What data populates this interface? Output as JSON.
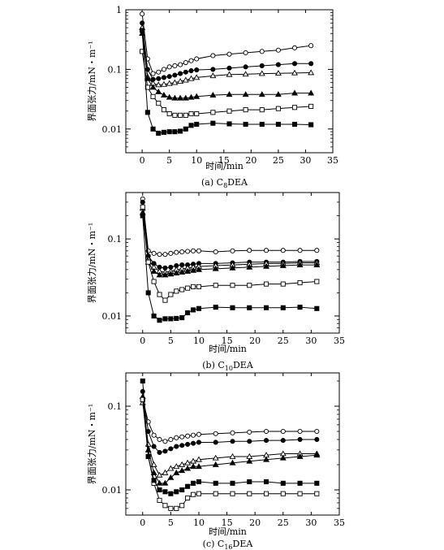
{
  "chart_data": [
    {
      "type": "line",
      "caption": {
        "prefix": "(a) C",
        "sub": "8",
        "suffix": "DEA"
      },
      "xlabel": "时间/min",
      "ylabel": "界面张力/mN・m⁻¹",
      "xlim": [
        -3,
        35
      ],
      "ylim": [
        0.004,
        1
      ],
      "yscale": "log",
      "xticks": [
        "0",
        "5",
        "10",
        "15",
        "20",
        "25",
        "30",
        "35"
      ],
      "yticks": [
        "1",
        "0.1",
        "0.01"
      ],
      "series": [
        {
          "marker": "open-circle",
          "x": [
            0,
            1,
            2,
            3,
            4,
            5,
            6,
            7,
            8,
            9,
            10,
            13,
            16,
            19,
            22,
            25,
            28,
            31
          ],
          "y": [
            0.85,
            0.15,
            0.085,
            0.09,
            0.1,
            0.11,
            0.115,
            0.12,
            0.13,
            0.14,
            0.15,
            0.17,
            0.18,
            0.19,
            0.2,
            0.21,
            0.23,
            0.25
          ]
        },
        {
          "marker": "filled-circle",
          "x": [
            0,
            1,
            2,
            3,
            4,
            5,
            6,
            7,
            8,
            9,
            10,
            13,
            16,
            19,
            22,
            25,
            28,
            31
          ],
          "y": [
            0.6,
            0.1,
            0.068,
            0.07,
            0.073,
            0.076,
            0.08,
            0.085,
            0.09,
            0.095,
            0.098,
            0.1,
            0.105,
            0.11,
            0.115,
            0.12,
            0.125,
            0.125
          ]
        },
        {
          "marker": "open-triangle",
          "x": [
            0,
            1,
            2,
            3,
            4,
            5,
            6,
            7,
            8,
            9,
            10,
            13,
            16,
            19,
            22,
            25,
            28,
            31
          ],
          "y": [
            0.5,
            0.075,
            0.058,
            0.055,
            0.056,
            0.058,
            0.06,
            0.063,
            0.066,
            0.07,
            0.073,
            0.078,
            0.082,
            0.083,
            0.085,
            0.086,
            0.087,
            0.088
          ]
        },
        {
          "marker": "filled-triangle",
          "x": [
            0,
            1,
            2,
            3,
            4,
            5,
            6,
            7,
            8,
            9,
            10,
            13,
            16,
            19,
            22,
            25,
            28,
            31
          ],
          "y": [
            0.4,
            0.07,
            0.05,
            0.042,
            0.037,
            0.034,
            0.033,
            0.033,
            0.033,
            0.034,
            0.035,
            0.037,
            0.038,
            0.038,
            0.038,
            0.038,
            0.04,
            0.04
          ]
        },
        {
          "marker": "open-square",
          "x": [
            0,
            1,
            2,
            3,
            4,
            5,
            6,
            7,
            8,
            9,
            10,
            13,
            16,
            19,
            22,
            25,
            28,
            31
          ],
          "y": [
            0.2,
            0.05,
            0.035,
            0.027,
            0.021,
            0.018,
            0.017,
            0.017,
            0.017,
            0.018,
            0.018,
            0.019,
            0.02,
            0.021,
            0.021,
            0.022,
            0.023,
            0.024
          ]
        },
        {
          "marker": "filled-square",
          "x": [
            0,
            1,
            2,
            3,
            4,
            5,
            6,
            7,
            8,
            9,
            10,
            13,
            16,
            19,
            22,
            25,
            28,
            31
          ],
          "y": [
            0.45,
            0.019,
            0.01,
            0.0085,
            0.0088,
            0.009,
            0.009,
            0.0092,
            0.01,
            0.0115,
            0.012,
            0.0125,
            0.0122,
            0.012,
            0.012,
            0.012,
            0.012,
            0.0118
          ]
        }
      ]
    },
    {
      "type": "line",
      "caption": {
        "prefix": "(b) C",
        "sub": "10",
        "suffix": "DEA"
      },
      "xlabel": "时间/min",
      "ylabel": "界面张力/mN・m⁻¹",
      "xlim": [
        -3,
        35
      ],
      "ylim": [
        0.006,
        0.4
      ],
      "yscale": "log",
      "xticks": [
        "0",
        "5",
        "10",
        "15",
        "20",
        "25",
        "30",
        "35"
      ],
      "yticks": [
        "0.1",
        "0.01"
      ],
      "series": [
        {
          "marker": "open-circle",
          "x": [
            0,
            1,
            2,
            3,
            4,
            5,
            6,
            7,
            8,
            9,
            10,
            13,
            16,
            19,
            22,
            25,
            28,
            31
          ],
          "y": [
            0.33,
            0.07,
            0.065,
            0.063,
            0.063,
            0.065,
            0.067,
            0.068,
            0.069,
            0.07,
            0.07,
            0.068,
            0.07,
            0.071,
            0.071,
            0.071,
            0.071,
            0.071
          ]
        },
        {
          "marker": "filled-circle",
          "x": [
            0,
            1,
            2,
            3,
            4,
            5,
            6,
            7,
            8,
            9,
            10,
            13,
            16,
            19,
            22,
            25,
            28,
            31
          ],
          "y": [
            0.3,
            0.06,
            0.048,
            0.043,
            0.042,
            0.043,
            0.045,
            0.046,
            0.046,
            0.047,
            0.048,
            0.048,
            0.049,
            0.05,
            0.05,
            0.05,
            0.051,
            0.051
          ]
        },
        {
          "marker": "open-triangle",
          "x": [
            0,
            1,
            2,
            3,
            4,
            5,
            6,
            7,
            8,
            9,
            10,
            13,
            16,
            19,
            22,
            25,
            28,
            31
          ],
          "y": [
            0.25,
            0.055,
            0.043,
            0.038,
            0.037,
            0.038,
            0.04,
            0.041,
            0.042,
            0.043,
            0.044,
            0.045,
            0.046,
            0.047,
            0.048,
            0.048,
            0.049,
            0.049
          ]
        },
        {
          "marker": "filled-triangle",
          "x": [
            0,
            1,
            2,
            3,
            4,
            5,
            6,
            7,
            8,
            9,
            10,
            13,
            16,
            19,
            22,
            25,
            28,
            31
          ],
          "y": [
            0.22,
            0.05,
            0.038,
            0.034,
            0.034,
            0.035,
            0.036,
            0.037,
            0.038,
            0.039,
            0.04,
            0.041,
            0.042,
            0.043,
            0.044,
            0.045,
            0.046,
            0.046
          ]
        },
        {
          "marker": "open-square",
          "x": [
            0,
            1,
            2,
            3,
            4,
            5,
            6,
            7,
            8,
            9,
            10,
            13,
            16,
            19,
            22,
            25,
            28,
            31
          ],
          "y": [
            0.26,
            0.05,
            0.028,
            0.019,
            0.016,
            0.019,
            0.021,
            0.022,
            0.023,
            0.024,
            0.024,
            0.025,
            0.025,
            0.025,
            0.026,
            0.026,
            0.027,
            0.028
          ]
        },
        {
          "marker": "filled-square",
          "x": [
            0,
            1,
            2,
            3,
            4,
            5,
            6,
            7,
            8,
            9,
            10,
            13,
            16,
            19,
            22,
            25,
            28,
            31
          ],
          "y": [
            0.2,
            0.02,
            0.01,
            0.0088,
            0.0092,
            0.0092,
            0.0093,
            0.0095,
            0.011,
            0.012,
            0.0125,
            0.013,
            0.0128,
            0.0128,
            0.0128,
            0.0128,
            0.013,
            0.0125
          ]
        }
      ]
    },
    {
      "type": "line",
      "caption": {
        "prefix": "(c) C",
        "sub": "16",
        "suffix": "DEA"
      },
      "xlabel": "时间/min",
      "ylabel": "界面张力/mN・m⁻¹",
      "xlim": [
        -3,
        35
      ],
      "ylim": [
        0.005,
        0.25
      ],
      "yscale": "log",
      "xticks": [
        "0",
        "5",
        "10",
        "15",
        "20",
        "25",
        "30",
        "35"
      ],
      "yticks": [
        "0.1",
        "0.01"
      ],
      "series": [
        {
          "marker": "open-circle",
          "x": [
            0,
            1,
            2,
            3,
            4,
            5,
            6,
            7,
            8,
            9,
            10,
            13,
            16,
            19,
            22,
            25,
            28,
            31
          ],
          "y": [
            0.12,
            0.065,
            0.045,
            0.04,
            0.038,
            0.04,
            0.042,
            0.043,
            0.044,
            0.045,
            0.046,
            0.047,
            0.048,
            0.049,
            0.05,
            0.05,
            0.05,
            0.05
          ]
        },
        {
          "marker": "filled-circle",
          "x": [
            0,
            1,
            2,
            3,
            4,
            5,
            6,
            7,
            8,
            9,
            10,
            13,
            16,
            19,
            22,
            25,
            28,
            31
          ],
          "y": [
            0.15,
            0.05,
            0.033,
            0.028,
            0.029,
            0.031,
            0.033,
            0.034,
            0.035,
            0.036,
            0.037,
            0.037,
            0.038,
            0.038,
            0.039,
            0.039,
            0.04,
            0.04
          ]
        },
        {
          "marker": "open-triangle",
          "x": [
            0,
            1,
            2,
            3,
            4,
            5,
            6,
            7,
            8,
            9,
            10,
            13,
            16,
            19,
            22,
            25,
            28,
            31
          ],
          "y": [
            0.11,
            0.035,
            0.02,
            0.015,
            0.016,
            0.018,
            0.019,
            0.02,
            0.021,
            0.022,
            0.023,
            0.024,
            0.025,
            0.025,
            0.026,
            0.027,
            0.027,
            0.027
          ]
        },
        {
          "marker": "filled-triangle",
          "x": [
            0,
            1,
            2,
            3,
            4,
            5,
            6,
            7,
            8,
            9,
            10,
            13,
            16,
            19,
            22,
            25,
            28,
            31
          ],
          "y": [
            0.13,
            0.03,
            0.016,
            0.012,
            0.012,
            0.014,
            0.016,
            0.017,
            0.018,
            0.019,
            0.019,
            0.02,
            0.021,
            0.022,
            0.023,
            0.024,
            0.025,
            0.026
          ]
        },
        {
          "marker": "open-square",
          "x": [
            0,
            1,
            2,
            3,
            4,
            5,
            6,
            7,
            8,
            9,
            10,
            13,
            16,
            19,
            22,
            25,
            28,
            31
          ],
          "y": [
            0.12,
            0.025,
            0.012,
            0.0075,
            0.0065,
            0.006,
            0.006,
            0.0065,
            0.008,
            0.0088,
            0.009,
            0.009,
            0.009,
            0.009,
            0.009,
            0.009,
            0.009,
            0.009
          ]
        },
        {
          "marker": "filled-square",
          "x": [
            0,
            1,
            2,
            3,
            4,
            5,
            6,
            7,
            8,
            9,
            10,
            13,
            16,
            19,
            22,
            25,
            28,
            31
          ],
          "y": [
            0.2,
            0.025,
            0.013,
            0.01,
            0.0095,
            0.009,
            0.0095,
            0.01,
            0.011,
            0.012,
            0.0125,
            0.012,
            0.012,
            0.0125,
            0.0125,
            0.012,
            0.012,
            0.012
          ]
        }
      ]
    }
  ]
}
